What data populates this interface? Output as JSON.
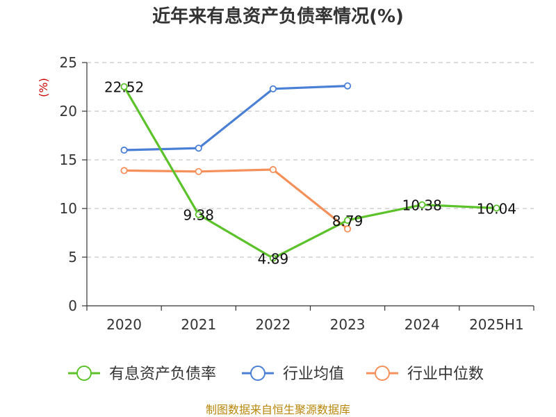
{
  "chart_data": {
    "type": "line",
    "title": "近年来有息资产负债率情况(%)",
    "ylabel": "(%)",
    "categories": [
      "2020",
      "2021",
      "2022",
      "2023",
      "2024",
      "2025H1"
    ],
    "ylim": [
      0,
      25
    ],
    "yticks": [
      "0",
      "5",
      "10",
      "15",
      "20",
      "25"
    ],
    "grid": true,
    "legend_position": "bottom",
    "series": [
      {
        "name": "有息资产负债率",
        "color": "#5bc22a",
        "values": [
          22.52,
          9.38,
          4.89,
          8.79,
          10.38,
          10.04
        ],
        "labels": [
          "22.52",
          "9.38",
          "4.89",
          "8.79",
          "10.38",
          "10.04"
        ]
      },
      {
        "name": "行业均值",
        "color": "#4a7fd6",
        "values": [
          16.0,
          16.2,
          22.3,
          22.6,
          null,
          null
        ]
      },
      {
        "name": "行业中位数",
        "color": "#f5905a",
        "values": [
          13.9,
          13.8,
          14.0,
          7.9,
          null,
          null
        ]
      }
    ],
    "source": "制图数据来自恒生聚源数据库"
  }
}
